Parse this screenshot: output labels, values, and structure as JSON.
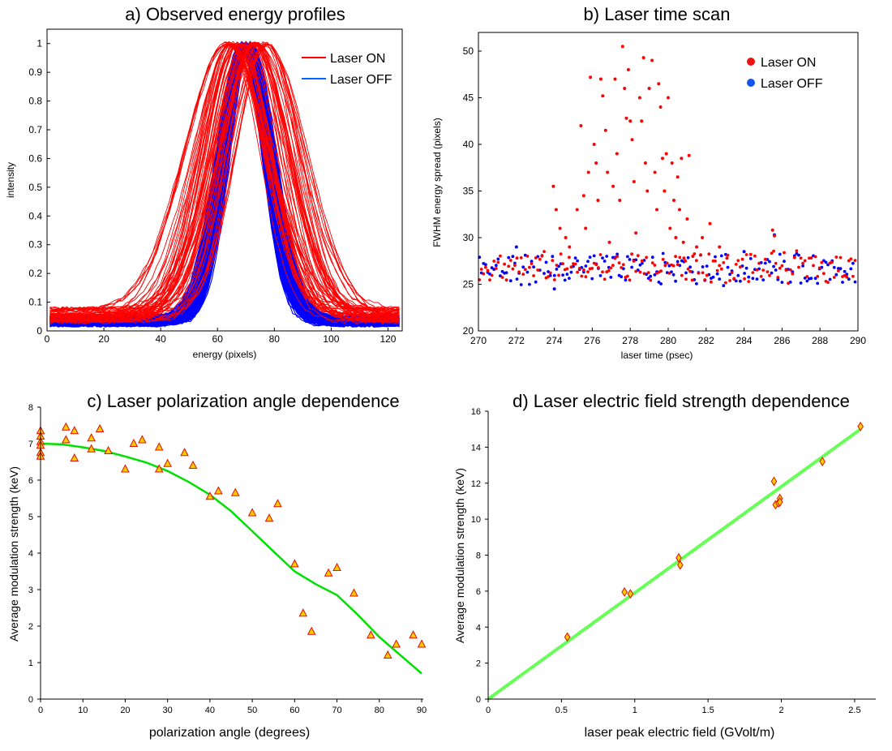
{
  "chart_data": [
    {
      "panel": "a",
      "type": "line",
      "title": "a)  Observed energy profiles",
      "xlabel": "energy (pixels)",
      "ylabel": "intensity",
      "xlim": [
        0,
        125
      ],
      "ylim": [
        0,
        1.05
      ],
      "xticks": [
        "0",
        "20",
        "40",
        "60",
        "80",
        "100",
        "120"
      ],
      "yticks": [
        "0",
        "0.1",
        "0.2",
        "0.3",
        "0.4",
        "0.5",
        "0.6",
        "0.7",
        "0.8",
        "0.9",
        "1"
      ],
      "legend_position": "top-right",
      "series": [
        {
          "name": "Laser ON",
          "color": "#ff0000",
          "curves": 60,
          "center": [
            62,
            78
          ],
          "width": [
            20,
            32
          ],
          "baseline": [
            0.03,
            0.08
          ]
        },
        {
          "name": "Laser OFF",
          "color": "#0000ff",
          "curves": 150,
          "center": [
            68,
            72
          ],
          "width": [
            15,
            19
          ],
          "baseline": [
            0.02,
            0.05
          ]
        }
      ]
    },
    {
      "panel": "b",
      "type": "scatter",
      "title": "b) Laser time scan",
      "xlabel": "laser time (psec)",
      "ylabel": "FWHM energy spread (pixels)",
      "xlim": [
        270,
        290
      ],
      "ylim": [
        20,
        52
      ],
      "xticks": [
        "270",
        "272",
        "274",
        "276",
        "278",
        "280",
        "282",
        "284",
        "286",
        "288",
        "290"
      ],
      "yticks": [
        "20",
        "25",
        "30",
        "35",
        "40",
        "45",
        "50"
      ],
      "legend_position": "top-right",
      "series": [
        {
          "name": "Laser ON",
          "color": "#ff0000",
          "peaks": [
            [
              273.95,
              35.5
            ],
            [
              274.1,
              33
            ],
            [
              274.3,
              31
            ],
            [
              274.6,
              30
            ],
            [
              274.8,
              29
            ],
            [
              275.2,
              33
            ],
            [
              275.4,
              42
            ],
            [
              275.55,
              34.5
            ],
            [
              275.65,
              31
            ],
            [
              275.8,
              37
            ],
            [
              275.9,
              47.2
            ],
            [
              276.1,
              40
            ],
            [
              276.2,
              38
            ],
            [
              276.3,
              34
            ],
            [
              276.45,
              47
            ],
            [
              276.55,
              45.2
            ],
            [
              276.7,
              41.5
            ],
            [
              276.8,
              37
            ],
            [
              276.9,
              29.5
            ],
            [
              277.1,
              35.5
            ],
            [
              277.2,
              47
            ],
            [
              277.3,
              39
            ],
            [
              277.45,
              34
            ],
            [
              277.6,
              50.5
            ],
            [
              277.7,
              46
            ],
            [
              277.8,
              42.8
            ],
            [
              277.9,
              48
            ],
            [
              278.0,
              42.5
            ],
            [
              278.1,
              40.5
            ],
            [
              278.2,
              36
            ],
            [
              278.3,
              30.5
            ],
            [
              278.5,
              45
            ],
            [
              278.6,
              42.5
            ],
            [
              278.7,
              49.3
            ],
            [
              278.8,
              38
            ],
            [
              278.9,
              35
            ],
            [
              279.0,
              46
            ],
            [
              279.15,
              49
            ],
            [
              279.3,
              37
            ],
            [
              279.4,
              33
            ],
            [
              279.5,
              46.5
            ],
            [
              279.6,
              44
            ],
            [
              279.7,
              38.5
            ],
            [
              279.8,
              35
            ],
            [
              279.9,
              39
            ],
            [
              280.0,
              45
            ],
            [
              280.1,
              31
            ],
            [
              280.2,
              38
            ],
            [
              280.3,
              34
            ],
            [
              280.4,
              30
            ],
            [
              280.5,
              36.5
            ],
            [
              280.6,
              33
            ],
            [
              280.7,
              38.5
            ],
            [
              280.8,
              29.5
            ],
            [
              280.9,
              27.5
            ],
            [
              281.0,
              32
            ],
            [
              281.1,
              38.8
            ],
            [
              281.3,
              28
            ],
            [
              281.5,
              29
            ],
            [
              281.8,
              30
            ],
            [
              282.2,
              31.5
            ],
            [
              282.7,
              29
            ],
            [
              283.1,
              27.8
            ],
            [
              285.5,
              30.8
            ],
            [
              285.6,
              30.2
            ]
          ]
        },
        {
          "name": "Laser OFF",
          "color": "#0000ff",
          "peaks": [
            [
              272.0,
              29
            ],
            [
              274.0,
              24.5
            ],
            [
              284.0,
              28.5
            ],
            [
              285.6,
              30.3
            ]
          ]
        }
      ]
    },
    {
      "panel": "c",
      "type": "scatter",
      "title": "c) Laser polarization angle dependence",
      "xlabel": "polarization angle (degrees)",
      "ylabel": "Average modulation strength (keV)",
      "xlim": [
        0,
        90
      ],
      "ylim": [
        0,
        8
      ],
      "xticks": [
        "0",
        "10",
        "20",
        "30",
        "40",
        "50",
        "60",
        "70",
        "80",
        "90"
      ],
      "yticks": [
        "0",
        "1",
        "2",
        "3",
        "4",
        "5",
        "6",
        "7",
        "8"
      ],
      "points": [
        [
          0,
          7.35
        ],
        [
          0,
          7.2
        ],
        [
          0,
          7.05
        ],
        [
          0,
          6.95
        ],
        [
          0,
          6.75
        ],
        [
          0,
          6.65
        ],
        [
          6,
          7.45
        ],
        [
          6,
          7.1
        ],
        [
          8,
          7.35
        ],
        [
          8,
          6.6
        ],
        [
          12,
          7.15
        ],
        [
          12,
          6.85
        ],
        [
          14,
          7.4
        ],
        [
          16,
          6.8
        ],
        [
          20,
          6.3
        ],
        [
          22,
          7.0
        ],
        [
          24,
          7.1
        ],
        [
          28,
          6.9
        ],
        [
          28,
          6.3
        ],
        [
          30,
          6.45
        ],
        [
          34,
          6.75
        ],
        [
          36,
          6.4
        ],
        [
          40,
          5.55
        ],
        [
          42,
          5.7
        ],
        [
          46,
          5.65
        ],
        [
          50,
          5.1
        ],
        [
          54,
          4.95
        ],
        [
          56,
          5.35
        ],
        [
          60,
          3.7
        ],
        [
          62,
          2.35
        ],
        [
          64,
          1.85
        ],
        [
          68,
          3.45
        ],
        [
          70,
          3.6
        ],
        [
          74,
          2.9
        ],
        [
          78,
          1.75
        ],
        [
          82,
          1.2
        ],
        [
          84,
          1.5
        ],
        [
          88,
          1.75
        ],
        [
          90,
          1.5
        ]
      ],
      "fit": {
        "color": "#00e000",
        "x": [
          0,
          5,
          10,
          15,
          20,
          25,
          30,
          35,
          40,
          45,
          50,
          55,
          60,
          65,
          70,
          75,
          80,
          85,
          90
        ],
        "y": [
          7.0,
          6.98,
          6.9,
          6.8,
          6.65,
          6.48,
          6.25,
          5.95,
          5.6,
          5.15,
          4.6,
          4.05,
          3.5,
          3.15,
          2.85,
          2.3,
          1.7,
          1.2,
          0.7
        ]
      }
    },
    {
      "panel": "d",
      "type": "scatter",
      "title": "d) Laser electric field strength dependence",
      "xlabel": "laser peak electric field (GVolt/m)",
      "ylabel": "Average modulation strength (keV)",
      "xlim": [
        0,
        2.6
      ],
      "ylim": [
        0,
        16
      ],
      "xticks": [
        "0",
        "0.5",
        "1",
        "1.5",
        "2",
        "2.5"
      ],
      "yticks": [
        "0",
        "2",
        "4",
        "6",
        "8",
        "10",
        "12",
        "14",
        "16"
      ],
      "points": [
        [
          0.54,
          3.45
        ],
        [
          0.93,
          5.95
        ],
        [
          0.97,
          5.85
        ],
        [
          1.3,
          7.85
        ],
        [
          1.31,
          7.45
        ],
        [
          1.95,
          12.1
        ],
        [
          1.96,
          10.8
        ],
        [
          1.98,
          10.9
        ],
        [
          1.99,
          11.15
        ],
        [
          1.99,
          10.95
        ],
        [
          2.28,
          13.2
        ],
        [
          2.54,
          15.15
        ]
      ],
      "fit": {
        "color": "#66ff55",
        "x": [
          0,
          2.54
        ],
        "y": [
          0,
          15.0
        ]
      }
    }
  ]
}
